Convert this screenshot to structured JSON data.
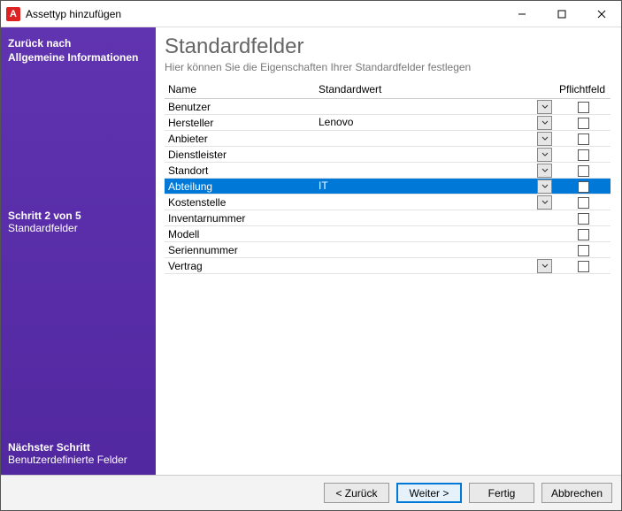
{
  "window": {
    "title": "Assettyp hinzufügen",
    "icon_letter": "A"
  },
  "sidebar": {
    "back_label": "Zurück nach",
    "back_target": "Allgemeine Informationen",
    "step_line": "Schritt 2 von 5",
    "step_name": "Standardfelder",
    "next_label": "Nächster Schritt",
    "next_name": "Benutzerdefinierte Felder"
  },
  "main": {
    "heading": "Standardfelder",
    "subheading": "Hier können Sie die Eigenschaften Ihrer Standardfelder festlegen",
    "columns": {
      "name": "Name",
      "default": "Standardwert",
      "required": "Pflichtfeld"
    },
    "rows": [
      {
        "name": "Benutzer",
        "default": "",
        "has_dropdown": true,
        "required": false,
        "selected": false
      },
      {
        "name": "Hersteller",
        "default": "Lenovo",
        "has_dropdown": true,
        "required": false,
        "selected": false
      },
      {
        "name": "Anbieter",
        "default": "",
        "has_dropdown": true,
        "required": false,
        "selected": false
      },
      {
        "name": "Dienstleister",
        "default": "",
        "has_dropdown": true,
        "required": false,
        "selected": false
      },
      {
        "name": "Standort",
        "default": "",
        "has_dropdown": true,
        "required": false,
        "selected": false
      },
      {
        "name": "Abteilung",
        "default": "IT",
        "has_dropdown": true,
        "required": false,
        "selected": true
      },
      {
        "name": "Kostenstelle",
        "default": "",
        "has_dropdown": true,
        "required": false,
        "selected": false
      },
      {
        "name": "Inventarnummer",
        "default": "",
        "has_dropdown": false,
        "required": false,
        "selected": false
      },
      {
        "name": "Modell",
        "default": "",
        "has_dropdown": false,
        "required": false,
        "selected": false
      },
      {
        "name": "Seriennummer",
        "default": "",
        "has_dropdown": false,
        "required": false,
        "selected": false
      },
      {
        "name": "Vertrag",
        "default": "",
        "has_dropdown": true,
        "required": false,
        "selected": false
      }
    ]
  },
  "footer": {
    "back": "< Zurück",
    "next": "Weiter >",
    "finish": "Fertig",
    "cancel": "Abbrechen"
  }
}
